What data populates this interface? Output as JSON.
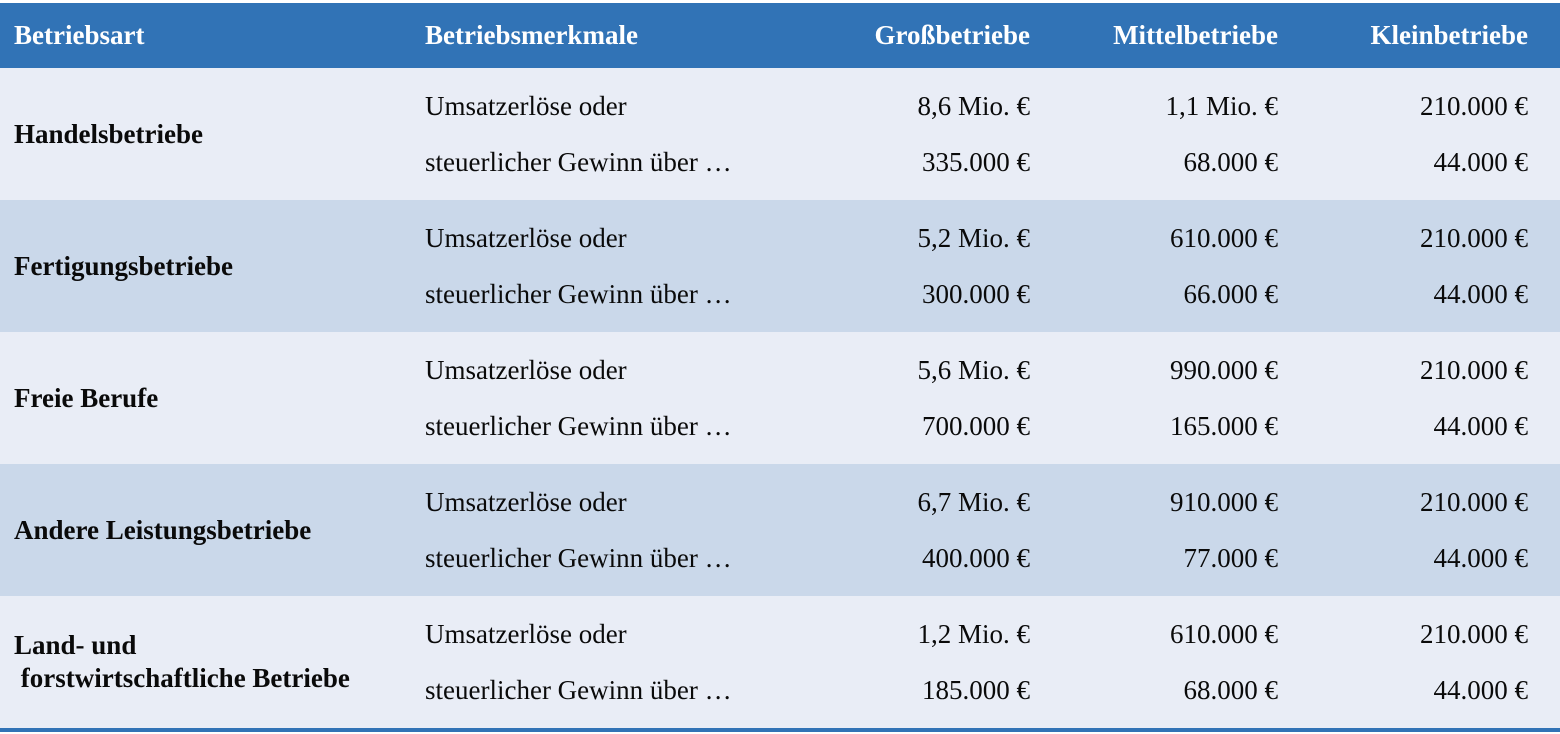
{
  "colors": {
    "header-bg": "#3173B6",
    "header-text": "#FFFFFF",
    "row-light": "#E9EDF6",
    "row-shaded": "#CAD8EA",
    "body-text": "#0A0A0A",
    "bottom-bar": "#3173B6"
  },
  "table": {
    "headers": [
      "Betriebsart",
      "Betriebsmerkmale",
      "Großbetriebe",
      "Mittelbetriebe",
      "Kleinbetriebe"
    ],
    "rows": [
      {
        "betriebsart": "Handelsbetriebe",
        "merkmale": [
          "Umsatzerlöse oder",
          "steuerlicher Gewinn über …"
        ],
        "grossbetriebe": [
          "8,6 Mio. €",
          "335.000 €"
        ],
        "mittelbetriebe": [
          "1,1 Mio. €",
          "68.000 €"
        ],
        "kleinbetriebe": [
          "210.000 €",
          "44.000 €"
        ]
      },
      {
        "betriebsart": "Fertigungsbetriebe",
        "merkmale": [
          "Umsatzerlöse oder",
          "steuerlicher Gewinn über …"
        ],
        "grossbetriebe": [
          "5,2 Mio. €",
          "300.000 €"
        ],
        "mittelbetriebe": [
          "610.000 €",
          "66.000 €"
        ],
        "kleinbetriebe": [
          "210.000 €",
          "44.000 €"
        ]
      },
      {
        "betriebsart": "Freie Berufe",
        "merkmale": [
          "Umsatzerlöse oder",
          "steuerlicher Gewinn über …"
        ],
        "grossbetriebe": [
          "5,6 Mio. €",
          "700.000 €"
        ],
        "mittelbetriebe": [
          "990.000 €",
          "165.000 €"
        ],
        "kleinbetriebe": [
          "210.000 €",
          "44.000 €"
        ]
      },
      {
        "betriebsart": "Andere Leistungsbetriebe",
        "merkmale": [
          "Umsatzerlöse oder",
          "steuerlicher Gewinn über …"
        ],
        "grossbetriebe": [
          "6,7 Mio. €",
          "400.000 €"
        ],
        "mittelbetriebe": [
          "910.000 €",
          "77.000 €"
        ],
        "kleinbetriebe": [
          "210.000 €",
          "44.000 €"
        ]
      },
      {
        "betriebsart": "Land- und\n forstwirtschaftliche Betriebe",
        "merkmale": [
          "Umsatzerlöse oder",
          "steuerlicher Gewinn über …"
        ],
        "grossbetriebe": [
          "1,2 Mio. €",
          "185.000 €"
        ],
        "mittelbetriebe": [
          "610.000 €",
          "68.000 €"
        ],
        "kleinbetriebe": [
          "210.000 €",
          "44.000 €"
        ]
      }
    ]
  }
}
